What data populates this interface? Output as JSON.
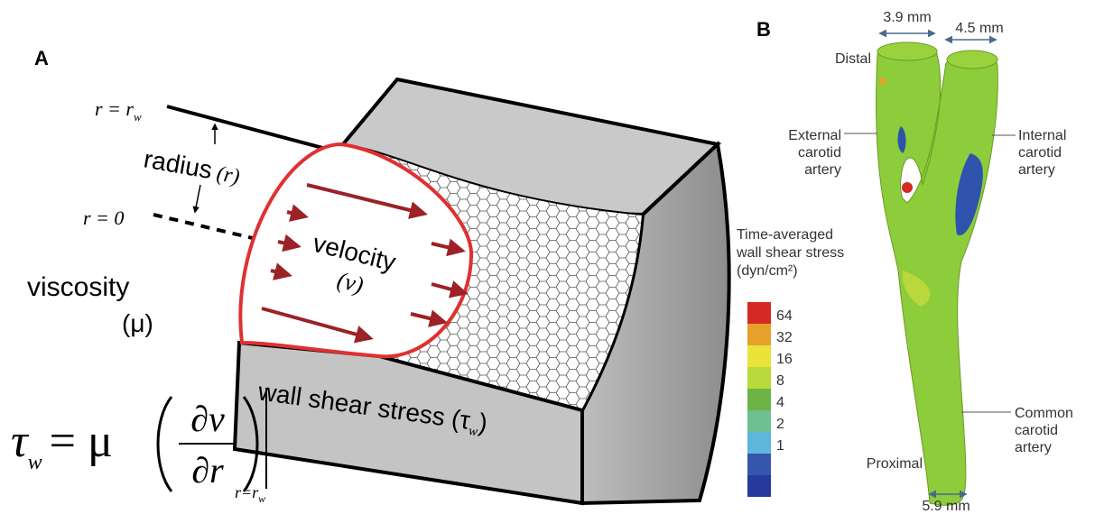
{
  "panel_a": {
    "label": "A",
    "r_wall": {
      "text": "r = r",
      "sub": "w"
    },
    "radius": {
      "word": "radius",
      "symbol": "(r)"
    },
    "r_zero": "r = 0",
    "viscosity": {
      "word": "viscosity",
      "symbol": "(μ)"
    },
    "velocity": {
      "word": "velocity",
      "symbol": "(ν)"
    },
    "wall_shear_stress": {
      "text": "wall shear stress (τ",
      "sub": "w",
      "close": ")"
    },
    "equation": {
      "lhs": "τ",
      "lhs_sub": "w",
      "middle": "= μ",
      "numerator": "∂v",
      "denominator": "∂r",
      "eval": "r=r",
      "eval_sub": "w"
    }
  },
  "panel_b": {
    "label": "B",
    "dim_left": "3.9 mm",
    "dim_right": "4.5 mm",
    "dim_bottom": "5.9 mm",
    "distal": "Distal",
    "proximal": "Proximal",
    "external": [
      "External",
      "carotid",
      "artery"
    ],
    "internal": [
      "Internal",
      "carotid",
      "artery"
    ],
    "common": [
      "Common",
      "carotid",
      "artery"
    ],
    "colorbar": {
      "title": [
        "Time-averaged",
        "wall shear stress",
        "(dyn/cm²)"
      ],
      "labels": [
        "64",
        "32",
        "16",
        "8",
        "4",
        "2",
        "1"
      ],
      "colors": [
        "#d42a24",
        "#e6a12a",
        "#e9e33a",
        "#b9d83c",
        "#6cb445",
        "#6fbf93",
        "#5fb6dc",
        "#3556ad",
        "#263a9c"
      ]
    }
  }
}
